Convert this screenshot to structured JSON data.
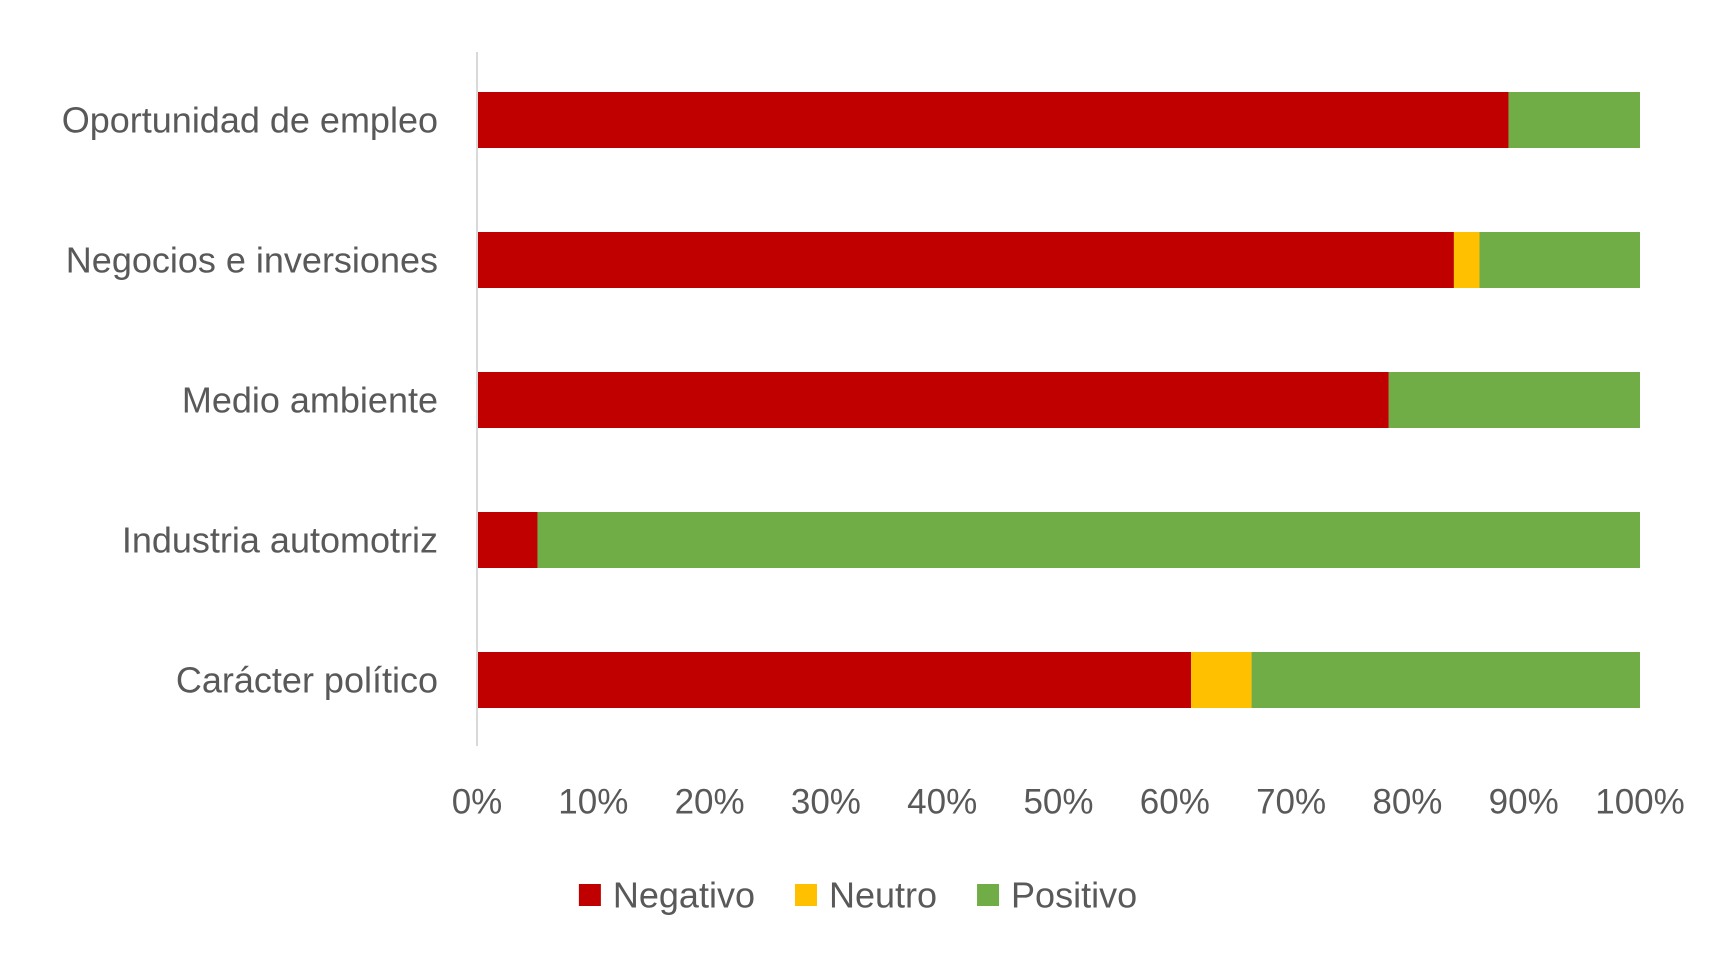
{
  "chart_data": {
    "type": "bar",
    "orientation": "horizontal",
    "stacked": true,
    "percent_stacked": true,
    "categories": [
      "Oportunidad de empleo",
      "Negocios e inversiones",
      "Medio ambiente",
      "Industria automotriz",
      "Carácter político"
    ],
    "series": [
      {
        "name": "Negativo",
        "color": "#C00000",
        "values": [
          88.7,
          84.0,
          78.4,
          5.2,
          61.4
        ]
      },
      {
        "name": "Neutro",
        "color": "#FFC000",
        "values": [
          0.0,
          2.2,
          0.0,
          0.0,
          5.2
        ]
      },
      {
        "name": "Positivo",
        "color": "#70AD47",
        "values": [
          11.3,
          13.8,
          21.6,
          94.8,
          33.4
        ]
      }
    ],
    "xlim": [
      0,
      100
    ],
    "x_ticks": [
      "0%",
      "10%",
      "20%",
      "30%",
      "40%",
      "50%",
      "60%",
      "70%",
      "80%",
      "90%",
      "100%"
    ],
    "title": "",
    "xlabel": "",
    "ylabel": "",
    "grid": false,
    "legend_position": "bottom"
  }
}
